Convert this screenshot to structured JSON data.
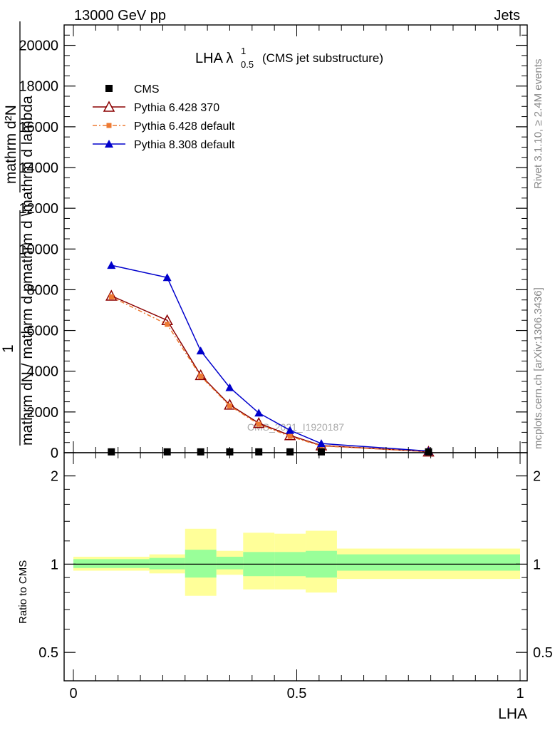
{
  "header": {
    "left": "13000 GeV pp",
    "right": "Jets"
  },
  "side": {
    "rivet": "Rivet 3.1.10, ≥ 2.4M events",
    "mcplots": "mcplots.cern.ch [arXiv:1306.3436]"
  },
  "watermark": "CMS_2021_I1920187",
  "ratio_ylabel": "Ratio to CMS",
  "colors": {
    "cms": "#000000",
    "p6_370": "#8b0000",
    "p6_def": "#ee7a32",
    "p8": "#0000cc",
    "band_outer": "#ffff99",
    "band_inner": "#99ff99"
  },
  "chart_data": [
    {
      "type": "line",
      "title": "LHA λ",
      "title_sup": "1",
      "title_sub": "0.5",
      "title_note": "(CMS jet substructure)",
      "xlabel": "LHA",
      "ylabel_top": "mathrm d",
      "ylabel_frac_num": "mathrm d²N",
      "ylabel_frac_den": "mathrm d p",
      "ylabel_frac_den_sub": "T",
      "ylabel_frac_den_rest": "mathrm d \\mathrm d lambda",
      "ylabel_one": "1",
      "ylabel_bottom": "mathrm dN / mathrm d p",
      "xlim": [
        0,
        1
      ],
      "ylim": [
        0,
        21000
      ],
      "yticks": [
        {
          "v": 0,
          "label": "0"
        },
        {
          "v": 2000,
          "label": "2000"
        },
        {
          "v": 4000,
          "label": "4000"
        },
        {
          "v": 6000,
          "label": "6000"
        },
        {
          "v": 8000,
          "label": "8000"
        },
        {
          "v": 10000,
          "label": "10000"
        },
        {
          "v": 12000,
          "label": "12000"
        },
        {
          "v": 14000,
          "label": "14000"
        },
        {
          "v": 16000,
          "label": "16000"
        },
        {
          "v": 18000,
          "label": "18000"
        },
        {
          "v": 20000,
          "label": "20000"
        }
      ],
      "legend_position": "top-left",
      "series": [
        {
          "name": "CMS",
          "marker": "square",
          "color": "#000000",
          "x": [
            0.085,
            0.21,
            0.285,
            0.35,
            0.415,
            0.485,
            0.555,
            0.795
          ],
          "y": [
            40,
            40,
            40,
            40,
            40,
            40,
            40,
            40
          ]
        },
        {
          "name": "Pythia 6.428 370",
          "marker": "triangle-open",
          "color": "#8b0000",
          "x": [
            0.085,
            0.21,
            0.285,
            0.35,
            0.415,
            0.485,
            0.555,
            0.795
          ],
          "y": [
            7700,
            6500,
            3800,
            2350,
            1450,
            850,
            350,
            50
          ]
        },
        {
          "name": "Pythia 6.428 default",
          "marker": "square-small",
          "color": "#ee7a32",
          "dash": true,
          "x": [
            0.085,
            0.21,
            0.285,
            0.35,
            0.415,
            0.485,
            0.555,
            0.795
          ],
          "y": [
            7650,
            6300,
            3750,
            2300,
            1400,
            800,
            330,
            50
          ]
        },
        {
          "name": "Pythia 8.308 default",
          "marker": "triangle",
          "color": "#0000cc",
          "x": [
            0.085,
            0.21,
            0.285,
            0.35,
            0.415,
            0.485,
            0.555,
            0.795
          ],
          "y": [
            9200,
            8600,
            5000,
            3200,
            1950,
            1100,
            450,
            80
          ]
        }
      ]
    },
    {
      "type": "area",
      "ylabel": "Ratio to CMS",
      "xlabel": "LHA",
      "xlim": [
        0,
        1
      ],
      "ylim": [
        0.4,
        2.4
      ],
      "log_y": true,
      "yticks": [
        {
          "v": 0.5,
          "label": "0.5"
        },
        {
          "v": 1,
          "label": "1"
        },
        {
          "v": 2,
          "label": "2"
        }
      ],
      "xticks": [
        {
          "v": 0,
          "label": "0"
        },
        {
          "v": 0.5,
          "label": "0.5"
        },
        {
          "v": 1,
          "label": "1"
        }
      ],
      "reference_line": 1,
      "bins": [
        {
          "x0": 0.0,
          "x1": 0.17,
          "outer": [
            0.95,
            1.06
          ],
          "inner": [
            0.97,
            1.04
          ]
        },
        {
          "x0": 0.17,
          "x1": 0.25,
          "outer": [
            0.93,
            1.08
          ],
          "inner": [
            0.96,
            1.05
          ]
        },
        {
          "x0": 0.25,
          "x1": 0.32,
          "outer": [
            0.78,
            1.32
          ],
          "inner": [
            0.9,
            1.12
          ]
        },
        {
          "x0": 0.32,
          "x1": 0.38,
          "outer": [
            0.92,
            1.11
          ],
          "inner": [
            0.96,
            1.06
          ]
        },
        {
          "x0": 0.38,
          "x1": 0.45,
          "outer": [
            0.82,
            1.28
          ],
          "inner": [
            0.91,
            1.1
          ]
        },
        {
          "x0": 0.45,
          "x1": 0.52,
          "outer": [
            0.82,
            1.27
          ],
          "inner": [
            0.91,
            1.1
          ]
        },
        {
          "x0": 0.52,
          "x1": 0.59,
          "outer": [
            0.8,
            1.3
          ],
          "inner": [
            0.9,
            1.11
          ]
        },
        {
          "x0": 0.59,
          "x1": 1.0,
          "outer": [
            0.89,
            1.13
          ],
          "inner": [
            0.95,
            1.08
          ]
        }
      ]
    }
  ]
}
